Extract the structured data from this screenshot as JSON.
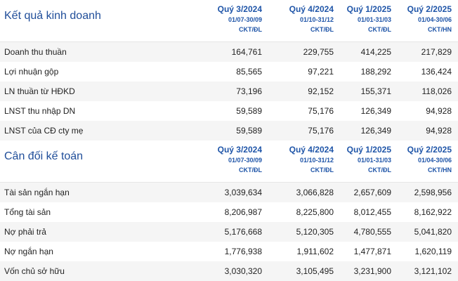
{
  "income": {
    "title": "Kết quả kinh doanh",
    "columns": [
      {
        "quarter": "Quý 3/2024",
        "dates": "01/07-30/09",
        "unit": "CKT/ĐL"
      },
      {
        "quarter": "Quý 4/2024",
        "dates": "01/10-31/12",
        "unit": "CKT/ĐL"
      },
      {
        "quarter": "Quý 1/2025",
        "dates": "01/01-31/03",
        "unit": "CKT/ĐL"
      },
      {
        "quarter": "Quý 2/2025",
        "dates": "01/04-30/06",
        "unit": "CKT/HN"
      }
    ],
    "rows": [
      {
        "label": "Doanh thu thuần",
        "values": [
          "164,761",
          "229,755",
          "414,225",
          "217,829"
        ]
      },
      {
        "label": "Lợi nhuận gộp",
        "values": [
          "85,565",
          "97,221",
          "188,292",
          "136,424"
        ]
      },
      {
        "label": "LN thuần từ HĐKD",
        "values": [
          "73,196",
          "92,152",
          "155,371",
          "118,026"
        ]
      },
      {
        "label": "LNST thu nhập DN",
        "values": [
          "59,589",
          "75,176",
          "126,349",
          "94,928"
        ]
      },
      {
        "label": "LNST của CĐ cty mẹ",
        "values": [
          "59,589",
          "75,176",
          "126,349",
          "94,928"
        ]
      }
    ]
  },
  "balance": {
    "title": "Cân đối kế toán",
    "columns": [
      {
        "quarter": "Quý 3/2024",
        "dates": "01/07-30/09",
        "unit": "CKT/ĐL"
      },
      {
        "quarter": "Quý 4/2024",
        "dates": "01/10-31/12",
        "unit": "CKT/ĐL"
      },
      {
        "quarter": "Quý 1/2025",
        "dates": "01/01-31/03",
        "unit": "CKT/ĐL"
      },
      {
        "quarter": "Quý 2/2025",
        "dates": "01/04-30/06",
        "unit": "CKT/HN"
      }
    ],
    "rows": [
      {
        "label": "Tài sản ngắn hạn",
        "values": [
          "3,039,634",
          "3,066,828",
          "2,657,609",
          "2,598,956"
        ]
      },
      {
        "label": "Tổng tài sản",
        "values": [
          "8,206,987",
          "8,225,800",
          "8,012,455",
          "8,162,922"
        ]
      },
      {
        "label": "Nợ phải trả",
        "values": [
          "5,176,668",
          "5,120,305",
          "4,780,555",
          "5,041,820"
        ]
      },
      {
        "label": "Nợ ngắn hạn",
        "values": [
          "1,776,938",
          "1,911,602",
          "1,477,871",
          "1,620,119"
        ]
      },
      {
        "label": "Vốn chủ sở hữu",
        "values": [
          "3,030,320",
          "3,105,495",
          "3,231,900",
          "3,121,102"
        ]
      }
    ]
  }
}
